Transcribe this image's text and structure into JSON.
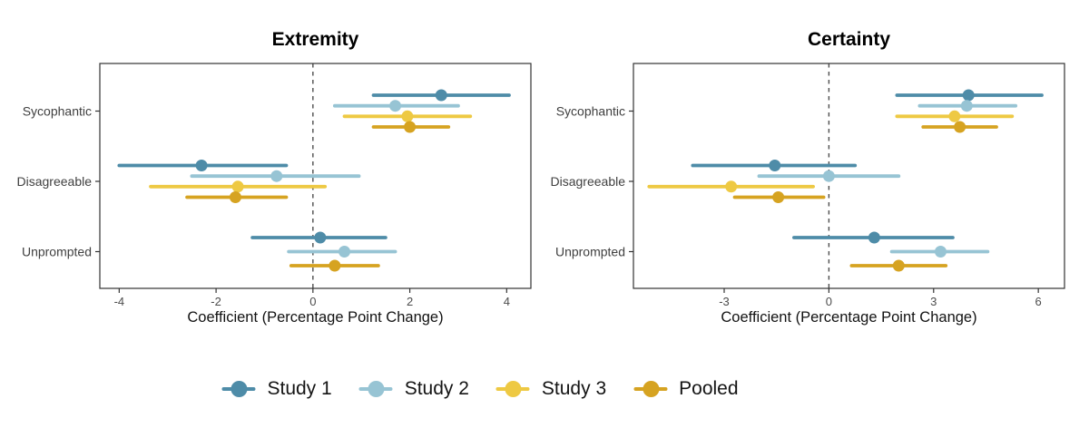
{
  "figure": {
    "background": "#ffffff",
    "legend": {
      "items": [
        {
          "label": "Study 1",
          "color": "#4E8CA8"
        },
        {
          "label": "Study 2",
          "color": "#97C4D4"
        },
        {
          "label": "Study 3",
          "color": "#EEC943"
        },
        {
          "label": "Pooled",
          "color": "#D6A321"
        }
      ]
    },
    "style": {
      "zero_line_color": "#4d4d4d",
      "panel_border_color": "#333333",
      "tick_label_color": "#4d4d4d",
      "category_label_color": "#404040"
    }
  },
  "chart_data": [
    {
      "type": "scatter",
      "subtype": "forest-pointrange",
      "title": "Extremity",
      "xlabel": "Coefficient (Percentage Point Change)",
      "categories": [
        "Sycophantic",
        "Disagreeable",
        "Unprompted"
      ],
      "xticks": [
        -4,
        -2,
        0,
        2,
        4
      ],
      "xlim": [
        -4.4,
        4.5
      ],
      "zero_line": 0,
      "grid": false,
      "series": [
        {
          "name": "Study 1",
          "color": "#4E8CA8",
          "points": [
            {
              "category": "Sycophantic",
              "est": 2.65,
              "lo": 1.25,
              "hi": 4.05
            },
            {
              "category": "Disagreeable",
              "est": -2.3,
              "lo": -4.0,
              "hi": -0.55
            },
            {
              "category": "Unprompted",
              "est": 0.15,
              "lo": -1.25,
              "hi": 1.5
            }
          ]
        },
        {
          "name": "Study 2",
          "color": "#97C4D4",
          "points": [
            {
              "category": "Sycophantic",
              "est": 1.7,
              "lo": 0.45,
              "hi": 3.0
            },
            {
              "category": "Disagreeable",
              "est": -0.75,
              "lo": -2.5,
              "hi": 0.95
            },
            {
              "category": "Unprompted",
              "est": 0.65,
              "lo": -0.5,
              "hi": 1.7
            }
          ]
        },
        {
          "name": "Study 3",
          "color": "#EEC943",
          "points": [
            {
              "category": "Sycophantic",
              "est": 1.95,
              "lo": 0.65,
              "hi": 3.25
            },
            {
              "category": "Disagreeable",
              "est": -1.55,
              "lo": -3.35,
              "hi": 0.25
            }
          ]
        },
        {
          "name": "Pooled",
          "color": "#D6A321",
          "points": [
            {
              "category": "Sycophantic",
              "est": 2.0,
              "lo": 1.25,
              "hi": 2.8
            },
            {
              "category": "Disagreeable",
              "est": -1.6,
              "lo": -2.6,
              "hi": -0.55
            },
            {
              "category": "Unprompted",
              "est": 0.45,
              "lo": -0.45,
              "hi": 1.35
            }
          ]
        }
      ]
    },
    {
      "type": "scatter",
      "subtype": "forest-pointrange",
      "title": "Certainty",
      "xlabel": "Coefficient (Percentage Point Change)",
      "categories": [
        "Sycophantic",
        "Disagreeable",
        "Unprompted"
      ],
      "xticks": [
        -3,
        0,
        3,
        6
      ],
      "xlim": [
        -5.6,
        6.75
      ],
      "zero_line": 0,
      "grid": false,
      "series": [
        {
          "name": "Study 1",
          "color": "#4E8CA8",
          "points": [
            {
              "category": "Sycophantic",
              "est": 4.0,
              "lo": 1.95,
              "hi": 6.1
            },
            {
              "category": "Disagreeable",
              "est": -1.55,
              "lo": -3.9,
              "hi": 0.75
            },
            {
              "category": "Unprompted",
              "est": 1.3,
              "lo": -1.0,
              "hi": 3.55
            }
          ]
        },
        {
          "name": "Study 2",
          "color": "#97C4D4",
          "points": [
            {
              "category": "Sycophantic",
              "est": 3.95,
              "lo": 2.6,
              "hi": 5.35
            },
            {
              "category": "Disagreeable",
              "est": 0.0,
              "lo": -2.0,
              "hi": 2.0
            },
            {
              "category": "Unprompted",
              "est": 3.2,
              "lo": 1.8,
              "hi": 4.55
            }
          ]
        },
        {
          "name": "Study 3",
          "color": "#EEC943",
          "points": [
            {
              "category": "Sycophantic",
              "est": 3.6,
              "lo": 1.95,
              "hi": 5.25
            },
            {
              "category": "Disagreeable",
              "est": -2.8,
              "lo": -5.15,
              "hi": -0.45
            }
          ]
        },
        {
          "name": "Pooled",
          "color": "#D6A321",
          "points": [
            {
              "category": "Sycophantic",
              "est": 3.75,
              "lo": 2.7,
              "hi": 4.8
            },
            {
              "category": "Disagreeable",
              "est": -1.45,
              "lo": -2.7,
              "hi": -0.15
            },
            {
              "category": "Unprompted",
              "est": 2.0,
              "lo": 0.65,
              "hi": 3.35
            }
          ]
        }
      ]
    }
  ]
}
